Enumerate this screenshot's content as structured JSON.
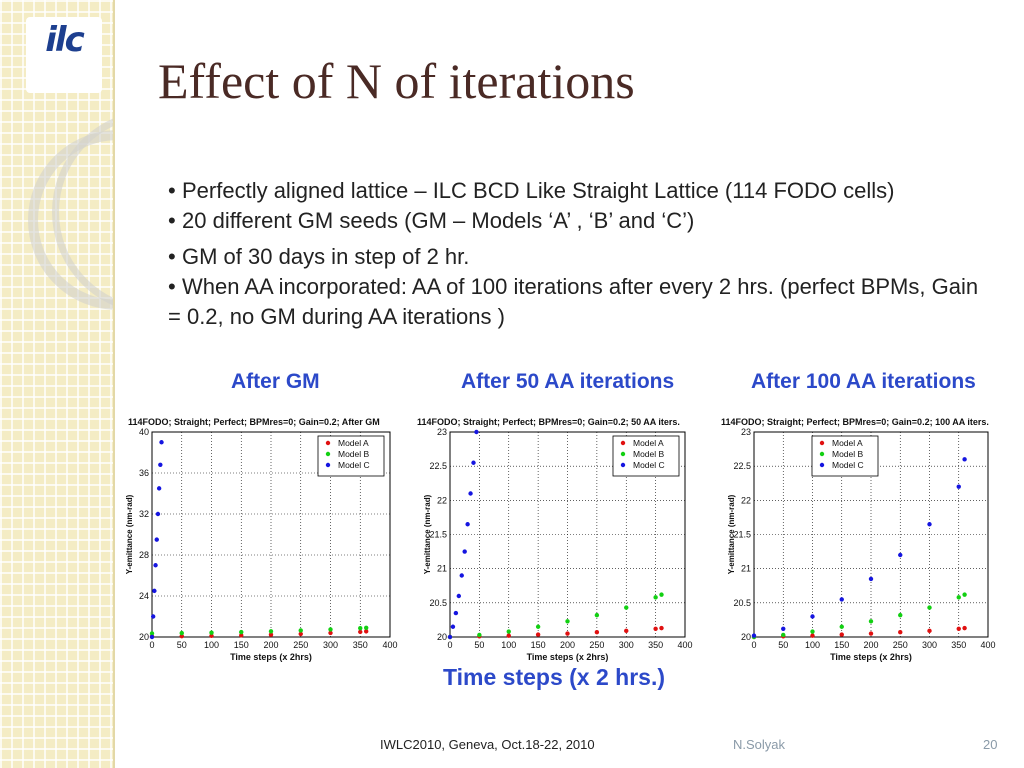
{
  "slide": {
    "title": "Effect of N of iterations",
    "logo_text": "ilc",
    "bullets": [
      "Perfectly aligned lattice – ILC BCD Like Straight Lattice (114 FODO cells)",
      "20 different GM seeds (GM – Models  ‘A’ , ‘B’ and ‘C’)",
      "GM of 30 days in step of 2 hr.",
      "When AA incorporated: AA of 100 iterations after every 2 hrs. (perfect BPMs, Gain = 0.2, no GM during AA iterations )"
    ],
    "panel_headers": [
      "After GM",
      "After 50 AA iterations",
      "After 100 AA iterations"
    ],
    "x_note": "Time steps (x 2 hrs.)",
    "footer": {
      "conference": "IWLC2010, Geneva, Oct.18-22, 2010",
      "author": "N.Solyak",
      "page": "20"
    }
  },
  "chart_data": [
    {
      "type": "scatter",
      "title": "114FODO; Straight; Perfect; BPMres=0; Gain=0.2; After GM",
      "xlabel": "Time steps (x 2hrs)",
      "ylabel": "Y-emittance (nm-rad)",
      "xlim": [
        0,
        400
      ],
      "ylim": [
        20,
        40
      ],
      "xticks": [
        0,
        50,
        100,
        150,
        200,
        250,
        300,
        350,
        400
      ],
      "yticks": [
        20,
        24,
        28,
        32,
        36,
        40
      ],
      "grid": true,
      "legend_position": "top-right",
      "series": [
        {
          "name": "Model A",
          "color": "#e01010",
          "x": [
            0,
            50,
            100,
            150,
            200,
            250,
            300,
            350,
            360
          ],
          "y": [
            20.05,
            20.08,
            20.12,
            20.17,
            20.23,
            20.3,
            20.4,
            20.5,
            20.55
          ]
        },
        {
          "name": "Model B",
          "color": "#12d012",
          "x": [
            0,
            50,
            100,
            150,
            200,
            250,
            300,
            350,
            360
          ],
          "y": [
            20.35,
            20.38,
            20.42,
            20.48,
            20.55,
            20.64,
            20.74,
            20.86,
            20.9
          ]
        },
        {
          "name": "Model C",
          "color": "#1515e0",
          "x": [
            0,
            2,
            4,
            6,
            8,
            10,
            12,
            14,
            16
          ],
          "y": [
            20.0,
            22.0,
            24.5,
            27.0,
            29.5,
            32.0,
            34.5,
            36.8,
            39.0
          ]
        }
      ]
    },
    {
      "type": "scatter",
      "title": "114FODO; Straight; Perfect; BPMres=0; Gain=0.2; 50 AA iters.",
      "xlabel": "Time steps (x 2hrs)",
      "ylabel": "Y-emittance (nm-rad)",
      "xlim": [
        0,
        400
      ],
      "ylim": [
        20,
        23
      ],
      "xticks": [
        0,
        50,
        100,
        150,
        200,
        250,
        300,
        350,
        400
      ],
      "yticks": [
        20,
        20.5,
        21,
        21.5,
        22,
        22.5,
        23
      ],
      "grid": true,
      "legend_position": "top-right",
      "series": [
        {
          "name": "Model A",
          "color": "#e01010",
          "x": [
            0,
            50,
            100,
            150,
            200,
            250,
            300,
            350,
            360
          ],
          "y": [
            20.0,
            20.01,
            20.02,
            20.035,
            20.05,
            20.07,
            20.09,
            20.12,
            20.13
          ]
        },
        {
          "name": "Model B",
          "color": "#12d012",
          "x": [
            0,
            50,
            100,
            150,
            200,
            250,
            300,
            350,
            360
          ],
          "y": [
            20.0,
            20.03,
            20.08,
            20.15,
            20.23,
            20.32,
            20.43,
            20.58,
            20.62
          ]
        },
        {
          "name": "Model C",
          "color": "#1515e0",
          "x": [
            0,
            5,
            10,
            15,
            20,
            25,
            30,
            35,
            40,
            45
          ],
          "y": [
            20.0,
            20.15,
            20.35,
            20.6,
            20.9,
            21.25,
            21.65,
            22.1,
            22.55,
            23.0
          ]
        }
      ]
    },
    {
      "type": "scatter",
      "title": "114FODO; Straight; Perfect; BPMres=0; Gain=0.2; 100 AA iters.",
      "xlabel": "Time steps (x 2hrs)",
      "ylabel": "Y-emittance (nm-rad)",
      "xlim": [
        0,
        400
      ],
      "ylim": [
        20,
        23
      ],
      "xticks": [
        0,
        50,
        100,
        150,
        200,
        250,
        300,
        350,
        400
      ],
      "yticks": [
        20,
        20.5,
        21,
        21.5,
        22,
        22.5,
        23
      ],
      "grid": true,
      "legend_position": "top-left",
      "series": [
        {
          "name": "Model A",
          "color": "#e01010",
          "x": [
            0,
            50,
            100,
            150,
            200,
            250,
            300,
            350,
            360
          ],
          "y": [
            20.0,
            20.01,
            20.02,
            20.035,
            20.05,
            20.07,
            20.09,
            20.12,
            20.13
          ]
        },
        {
          "name": "Model B",
          "color": "#12d012",
          "x": [
            0,
            50,
            100,
            150,
            200,
            250,
            300,
            350,
            360
          ],
          "y": [
            20.0,
            20.03,
            20.08,
            20.15,
            20.23,
            20.32,
            20.43,
            20.58,
            20.62
          ]
        },
        {
          "name": "Model C",
          "color": "#1515e0",
          "x": [
            0,
            50,
            100,
            150,
            200,
            250,
            300,
            350,
            360
          ],
          "y": [
            20.02,
            20.12,
            20.3,
            20.55,
            20.85,
            21.2,
            21.65,
            22.2,
            22.6
          ]
        }
      ]
    }
  ]
}
